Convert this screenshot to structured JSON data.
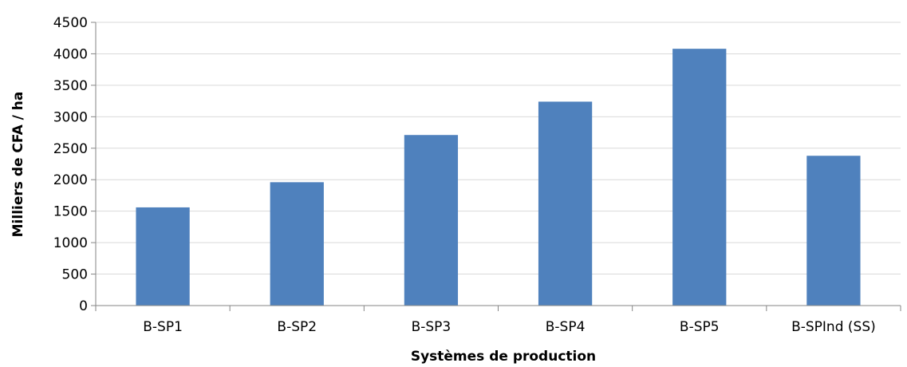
{
  "chart_data": {
    "type": "bar",
    "title": "",
    "xlabel": "Systèmes de production",
    "ylabel": "Milliers de CFA / ha",
    "categories": [
      "B-SP1",
      "B-SP2",
      "B-SP3",
      "B-SP4",
      "B-SP5",
      "B-SPInd (SS)"
    ],
    "values": [
      1560,
      1960,
      2710,
      3240,
      4080,
      2380
    ],
    "ylim": [
      0,
      4500
    ],
    "yticks": [
      "0",
      "500",
      "1000",
      "1500",
      "2000",
      "2500",
      "3000",
      "3500",
      "4000",
      "4500"
    ],
    "grid": true,
    "legend": "none",
    "bar_color": "#4f81bd",
    "grid_color": "#d9d9d9",
    "axis_color": "#868686"
  }
}
